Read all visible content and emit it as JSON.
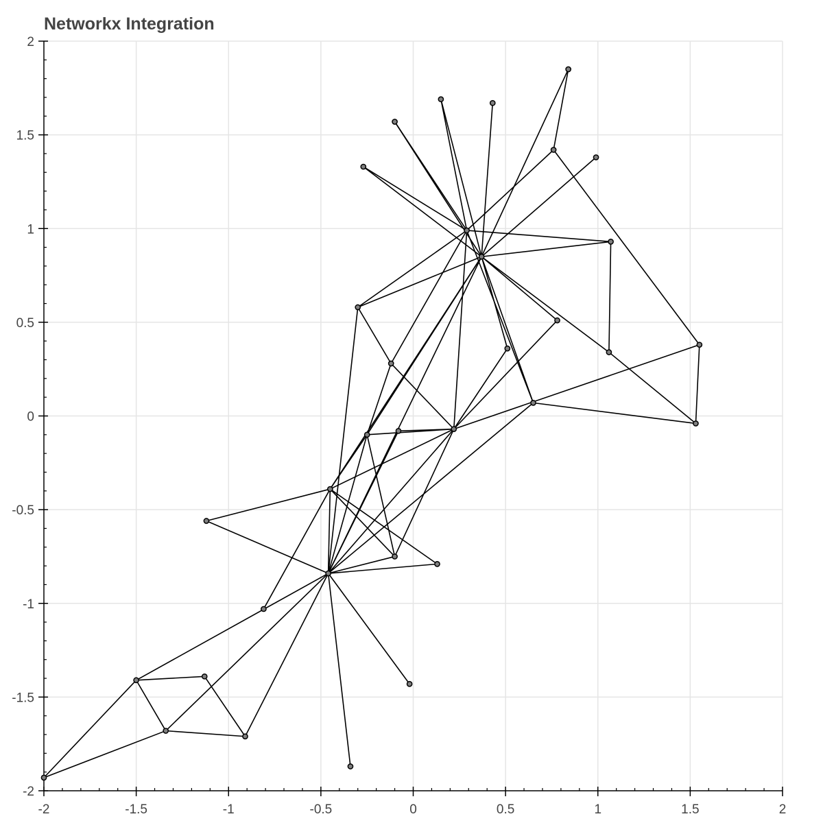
{
  "chart_data": {
    "type": "network",
    "title": "Networkx Integration",
    "xlabel": "",
    "ylabel": "",
    "xlim": [
      -2,
      2
    ],
    "ylim": [
      -2,
      2
    ],
    "x_ticks": [
      -2,
      -1.5,
      -1,
      -0.5,
      0,
      0.5,
      1,
      1.5,
      2
    ],
    "x_tick_labels": [
      "-2",
      "-1.5",
      "-1",
      "-0.5",
      "0",
      "0.5",
      "1",
      "1.5",
      "2"
    ],
    "y_ticks": [
      -2,
      -1.5,
      -1,
      -0.5,
      0,
      0.5,
      1,
      1.5,
      2
    ],
    "y_tick_labels": [
      "-2",
      "-1.5",
      "-1",
      "-0.5",
      "0",
      "0.5",
      "1",
      "1.5",
      "2"
    ],
    "grid": true,
    "colors": {
      "node_fill": "#808080",
      "node_stroke": "#000000",
      "edge": "#000000",
      "grid": "#e5e5e5",
      "title": "#444444"
    },
    "nodes": [
      {
        "id": 0,
        "x": 0.29,
        "y": 0.99
      },
      {
        "id": 1,
        "x": 0.37,
        "y": 0.85
      },
      {
        "id": 2,
        "x": 0.84,
        "y": 1.85
      },
      {
        "id": 3,
        "x": 0.43,
        "y": 1.67
      },
      {
        "id": 4,
        "x": 0.15,
        "y": 1.69
      },
      {
        "id": 5,
        "x": -0.1,
        "y": 1.57
      },
      {
        "id": 6,
        "x": -0.27,
        "y": 1.33
      },
      {
        "id": 7,
        "x": 0.76,
        "y": 1.42
      },
      {
        "id": 8,
        "x": 0.99,
        "y": 1.38
      },
      {
        "id": 9,
        "x": 1.07,
        "y": 0.93
      },
      {
        "id": 10,
        "x": -0.3,
        "y": 0.58
      },
      {
        "id": 11,
        "x": 0.78,
        "y": 0.51
      },
      {
        "id": 12,
        "x": 0.51,
        "y": 0.36
      },
      {
        "id": 13,
        "x": 1.06,
        "y": 0.34
      },
      {
        "id": 14,
        "x": 1.55,
        "y": 0.38
      },
      {
        "id": 15,
        "x": 0.65,
        "y": 0.07
      },
      {
        "id": 16,
        "x": 1.53,
        "y": -0.04
      },
      {
        "id": 17,
        "x": -0.12,
        "y": 0.28
      },
      {
        "id": 18,
        "x": 0.22,
        "y": -0.07
      },
      {
        "id": 19,
        "x": -0.08,
        "y": -0.08
      },
      {
        "id": 20,
        "x": -0.25,
        "y": -0.1
      },
      {
        "id": 21,
        "x": -0.45,
        "y": -0.39
      },
      {
        "id": 22,
        "x": -1.12,
        "y": -0.56
      },
      {
        "id": 23,
        "x": -0.46,
        "y": -0.84
      },
      {
        "id": 24,
        "x": -0.1,
        "y": -0.75
      },
      {
        "id": 25,
        "x": 0.13,
        "y": -0.79
      },
      {
        "id": 26,
        "x": -0.81,
        "y": -1.03
      },
      {
        "id": 27,
        "x": -0.02,
        "y": -1.43
      },
      {
        "id": 28,
        "x": -0.34,
        "y": -1.87
      },
      {
        "id": 29,
        "x": -1.5,
        "y": -1.41
      },
      {
        "id": 30,
        "x": -1.13,
        "y": -1.39
      },
      {
        "id": 31,
        "x": -1.34,
        "y": -1.68
      },
      {
        "id": 32,
        "x": -0.91,
        "y": -1.71
      },
      {
        "id": 33,
        "x": -2.0,
        "y": -1.93
      }
    ],
    "edges": [
      [
        0,
        4
      ],
      [
        0,
        5
      ],
      [
        0,
        6
      ],
      [
        0,
        7
      ],
      [
        0,
        9
      ],
      [
        0,
        10
      ],
      [
        0,
        15
      ],
      [
        0,
        17
      ],
      [
        0,
        18
      ],
      [
        1,
        2
      ],
      [
        1,
        3
      ],
      [
        1,
        4
      ],
      [
        1,
        5
      ],
      [
        1,
        6
      ],
      [
        1,
        8
      ],
      [
        1,
        9
      ],
      [
        1,
        10
      ],
      [
        1,
        11
      ],
      [
        1,
        12
      ],
      [
        1,
        13
      ],
      [
        1,
        15
      ],
      [
        1,
        20
      ],
      [
        1,
        21
      ],
      [
        1,
        23
      ],
      [
        2,
        7
      ],
      [
        7,
        14
      ],
      [
        9,
        13
      ],
      [
        10,
        17
      ],
      [
        10,
        23
      ],
      [
        11,
        18
      ],
      [
        12,
        18
      ],
      [
        13,
        16
      ],
      [
        14,
        16
      ],
      [
        14,
        18
      ],
      [
        15,
        16
      ],
      [
        15,
        23
      ],
      [
        17,
        18
      ],
      [
        17,
        20
      ],
      [
        18,
        19
      ],
      [
        18,
        20
      ],
      [
        18,
        21
      ],
      [
        18,
        23
      ],
      [
        18,
        24
      ],
      [
        19,
        23
      ],
      [
        20,
        21
      ],
      [
        20,
        23
      ],
      [
        20,
        24
      ],
      [
        21,
        22
      ],
      [
        21,
        23
      ],
      [
        21,
        24
      ],
      [
        21,
        25
      ],
      [
        21,
        26
      ],
      [
        22,
        23
      ],
      [
        23,
        24
      ],
      [
        23,
        25
      ],
      [
        23,
        27
      ],
      [
        23,
        28
      ],
      [
        23,
        29
      ],
      [
        23,
        31
      ],
      [
        23,
        32
      ],
      [
        29,
        30
      ],
      [
        29,
        31
      ],
      [
        29,
        33
      ],
      [
        30,
        32
      ],
      [
        31,
        32
      ],
      [
        31,
        33
      ]
    ]
  }
}
